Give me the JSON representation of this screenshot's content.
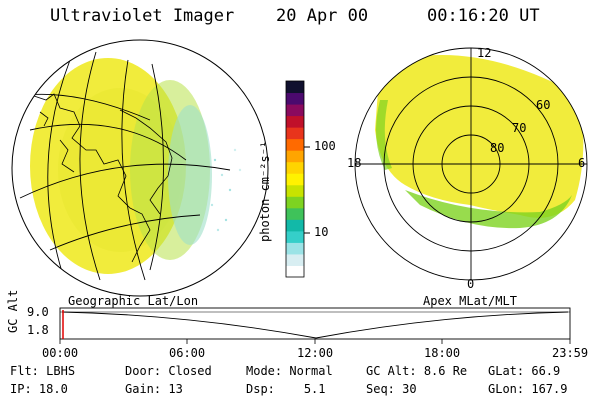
{
  "header": {
    "instrument": "Ultraviolet Imager",
    "date": "20 Apr 00",
    "time": "00:16:20 UT"
  },
  "colorbar": {
    "unit_label": "photon cm⁻²s⁻¹",
    "ticks": [
      "100",
      "10"
    ],
    "colors": [
      "#ffffff",
      "#d8eef2",
      "#9be3e6",
      "#35cfc9",
      "#12b9a8",
      "#3fc25a",
      "#7ed321",
      "#c8e300",
      "#fff200",
      "#ffd400",
      "#ffa500",
      "#ff6a00",
      "#e8341c",
      "#c0102a",
      "#8a0a5e",
      "#4b0a6e",
      "#10102e"
    ]
  },
  "globe_left": {
    "label": "Geographic Lat/Lon",
    "fill_color": "#f3ee3a"
  },
  "polar_right": {
    "label": "Apex MLat/MLT",
    "lat_labels": [
      "60",
      "70",
      "80"
    ],
    "mlt_labels": {
      "top": "12",
      "left": "18",
      "right": "6",
      "bottom": "0"
    },
    "fill_color": "#f3ee3a"
  },
  "timeline": {
    "axis_label": "GC Alt",
    "y_ticks": [
      "9.0",
      "1.8"
    ],
    "x_ticks": [
      "00:00",
      "06:00",
      "12:00",
      "18:00",
      "23:59"
    ]
  },
  "footer": {
    "row1": [
      {
        "label": "Flt:",
        "value": "LBHS"
      },
      {
        "label": "Door:",
        "value": "Closed"
      },
      {
        "label": "Mode:",
        "value": "Normal"
      },
      {
        "label": "GC Alt:",
        "value": "8.6 Re"
      },
      {
        "label": "GLat:",
        "value": "66.9"
      }
    ],
    "row2": [
      {
        "label": "IP:",
        "value": "18.0"
      },
      {
        "label": "Gain:",
        "value": "13"
      },
      {
        "label": "Dsp:",
        "value": "5.1"
      },
      {
        "label": "Seq:",
        "value": "30"
      },
      {
        "label": "GLon:",
        "value": "167.9"
      }
    ]
  }
}
